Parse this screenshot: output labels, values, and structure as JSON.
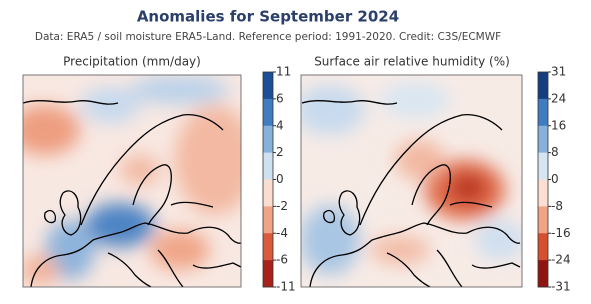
{
  "header": {
    "title": "Anomalies for September 2024",
    "subtitle": "Data: ERA5 / soil moisture ERA5-Land.  Reference period: 1991-2020.  Credit: C3S/ECMWF"
  },
  "panels": [
    {
      "title": "Precipitation (mm/day)",
      "colorbar": {
        "ticks": [
          11,
          6,
          4,
          2,
          0,
          -2,
          -4,
          -6,
          -11
        ],
        "colors": [
          "#1c4f98",
          "#3f7cc0",
          "#86b1db",
          "#cfe0f0",
          "#f9ddd0",
          "#f0a385",
          "#d95b3c",
          "#a8221a"
        ]
      }
    },
    {
      "title": "Surface air relative humidity (%)",
      "colorbar": {
        "ticks": [
          31,
          24,
          16,
          8,
          0,
          -8,
          -16,
          -24,
          -31
        ],
        "colors": [
          "#143e80",
          "#3f7cc0",
          "#86b1db",
          "#d6e5f2",
          "#fadfd2",
          "#f0a385",
          "#d4502f",
          "#8f1510"
        ]
      }
    }
  ]
}
